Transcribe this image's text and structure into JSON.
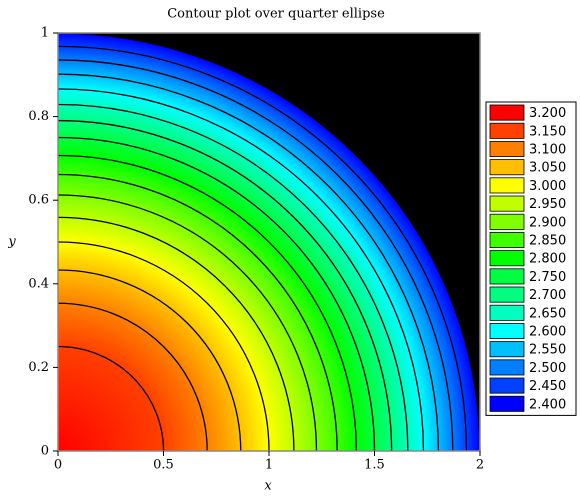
{
  "chart_data": {
    "type": "contour",
    "title": "Contour plot over quarter ellipse",
    "xlabel": "x",
    "ylabel": "y",
    "xlim": [
      0,
      2
    ],
    "ylim": [
      0,
      1
    ],
    "xticks": [
      0,
      0.5,
      1,
      1.5,
      2
    ],
    "yticks": [
      0,
      0.2,
      0.4,
      0.6,
      0.8,
      1
    ],
    "background": "#000000",
    "line_color": "#000000",
    "levels": [
      {
        "value": 3.2,
        "label": "3.200",
        "color": "#ff0000"
      },
      {
        "value": 3.15,
        "label": "3.150",
        "color": "#ff4000"
      },
      {
        "value": 3.1,
        "label": "3.100",
        "color": "#ff8000"
      },
      {
        "value": 3.05,
        "label": "3.050",
        "color": "#ffbf00"
      },
      {
        "value": 3.0,
        "label": "3.000",
        "color": "#ffff00"
      },
      {
        "value": 2.95,
        "label": "2.950",
        "color": "#bfff00"
      },
      {
        "value": 2.9,
        "label": "2.900",
        "color": "#80ff00"
      },
      {
        "value": 2.85,
        "label": "2.850",
        "color": "#40ff00"
      },
      {
        "value": 2.8,
        "label": "2.800",
        "color": "#00ff00"
      },
      {
        "value": 2.75,
        "label": "2.750",
        "color": "#00ff40"
      },
      {
        "value": 2.7,
        "label": "2.700",
        "color": "#00ff80"
      },
      {
        "value": 2.65,
        "label": "2.650",
        "color": "#00ffbf"
      },
      {
        "value": 2.6,
        "label": "2.600",
        "color": "#00ffff"
      },
      {
        "value": 2.55,
        "label": "2.550",
        "color": "#00bfff"
      },
      {
        "value": 2.5,
        "label": "2.500",
        "color": "#0080ff"
      },
      {
        "value": 2.45,
        "label": "2.450",
        "color": "#0040ff"
      },
      {
        "value": 2.4,
        "label": "2.400",
        "color": "#0000ff"
      }
    ],
    "contour_x": [
      0,
      0.5,
      0.707,
      0.866,
      1,
      1.118,
      1.225,
      1.323,
      1.414,
      1.5,
      1.581,
      1.658,
      1.732,
      1.803,
      1.871,
      1.936,
      2
    ]
  }
}
